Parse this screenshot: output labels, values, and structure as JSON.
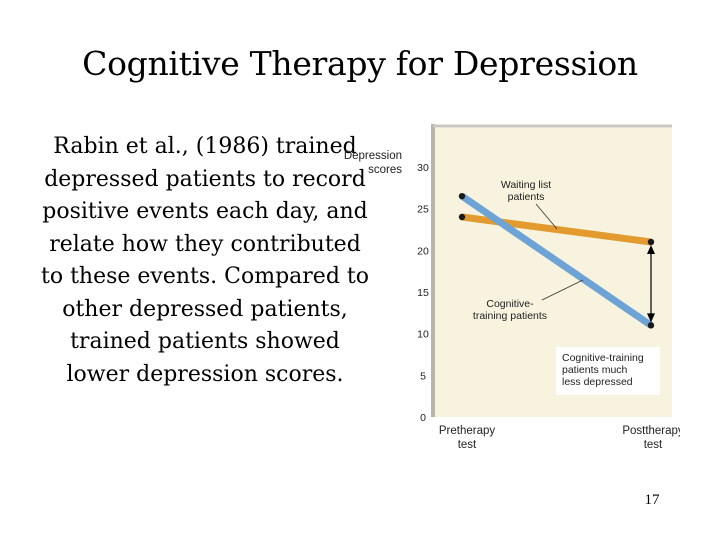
{
  "slide": {
    "title": "Cognitive Therapy for Depression",
    "body": "Rabin et al., (1986) trained depressed patients to record positive events each day, and relate how they contributed to these events. Compared to other depressed patients, trained patients showed lower depression scores.",
    "page_number": "17"
  },
  "colors": {
    "plot_background": "#f7f3de",
    "waiting_list": "#e39a2e",
    "cognitive_training": "#6ea3d6",
    "arrow": "#000000"
  },
  "chart_data": {
    "type": "line",
    "ylabel": [
      "Depression",
      "scores"
    ],
    "ylim": [
      0,
      30
    ],
    "yticks": [
      0,
      5,
      10,
      15,
      20,
      25,
      30
    ],
    "categories": [
      "Pretherapy test",
      "Posttherapy test"
    ],
    "category_labels": [
      [
        "Pretherapy",
        "test"
      ],
      [
        "Posttherapy",
        "test"
      ]
    ],
    "grid": false,
    "series": [
      {
        "name": "Waiting list patients",
        "label_lines": [
          "Waiting list",
          "patients"
        ],
        "values": [
          24,
          21
        ],
        "color": "#e39a2e"
      },
      {
        "name": "Cognitive-training patients",
        "label_lines": [
          "Cognitive-",
          "training patients"
        ],
        "values": [
          26.5,
          11
        ],
        "color": "#6ea3d6"
      }
    ],
    "annotation": {
      "lines": [
        "Cognitive-training",
        "patients much",
        "less depressed"
      ],
      "from": 21,
      "to": 11
    }
  }
}
